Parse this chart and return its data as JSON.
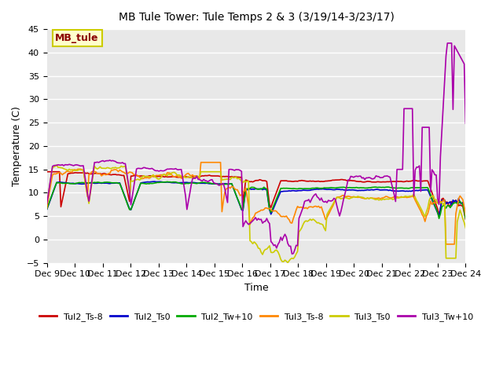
{
  "title": "MB Tule Tower: Tule Temps 2 & 3 (3/19/14-3/23/17)",
  "xlabel": "Time",
  "ylabel": "Temperature (C)",
  "ylim": [
    -5,
    45
  ],
  "xlim": [
    0,
    15
  ],
  "x_tick_labels": [
    "Dec 9",
    "Dec 10",
    "Dec 11",
    "Dec 12",
    "Dec 13",
    "Dec 14",
    "Dec 15",
    "Dec 16",
    "Dec 17",
    "Dec 18",
    "Dec 19",
    "Dec 20",
    "Dec 21",
    "Dec 22",
    "Dec 23",
    "Dec 24"
  ],
  "annotation_text": "MB_tule",
  "annotation_color": "#8B0000",
  "annotation_bg": "#FFFFCC",
  "annotation_border": "#CCCC00",
  "background_color": "#E8E8E8",
  "grid_color": "#FFFFFF",
  "series": {
    "Tul2_Ts-8": {
      "color": "#CC0000",
      "lw": 1.2
    },
    "Tul2_Ts0": {
      "color": "#0000CC",
      "lw": 1.2
    },
    "Tul2_Tw+10": {
      "color": "#00AA00",
      "lw": 1.2
    },
    "Tul3_Ts-8": {
      "color": "#FF8800",
      "lw": 1.2
    },
    "Tul3_Ts0": {
      "color": "#CCCC00",
      "lw": 1.2
    },
    "Tul3_Tw+10": {
      "color": "#AA00AA",
      "lw": 1.2
    }
  }
}
